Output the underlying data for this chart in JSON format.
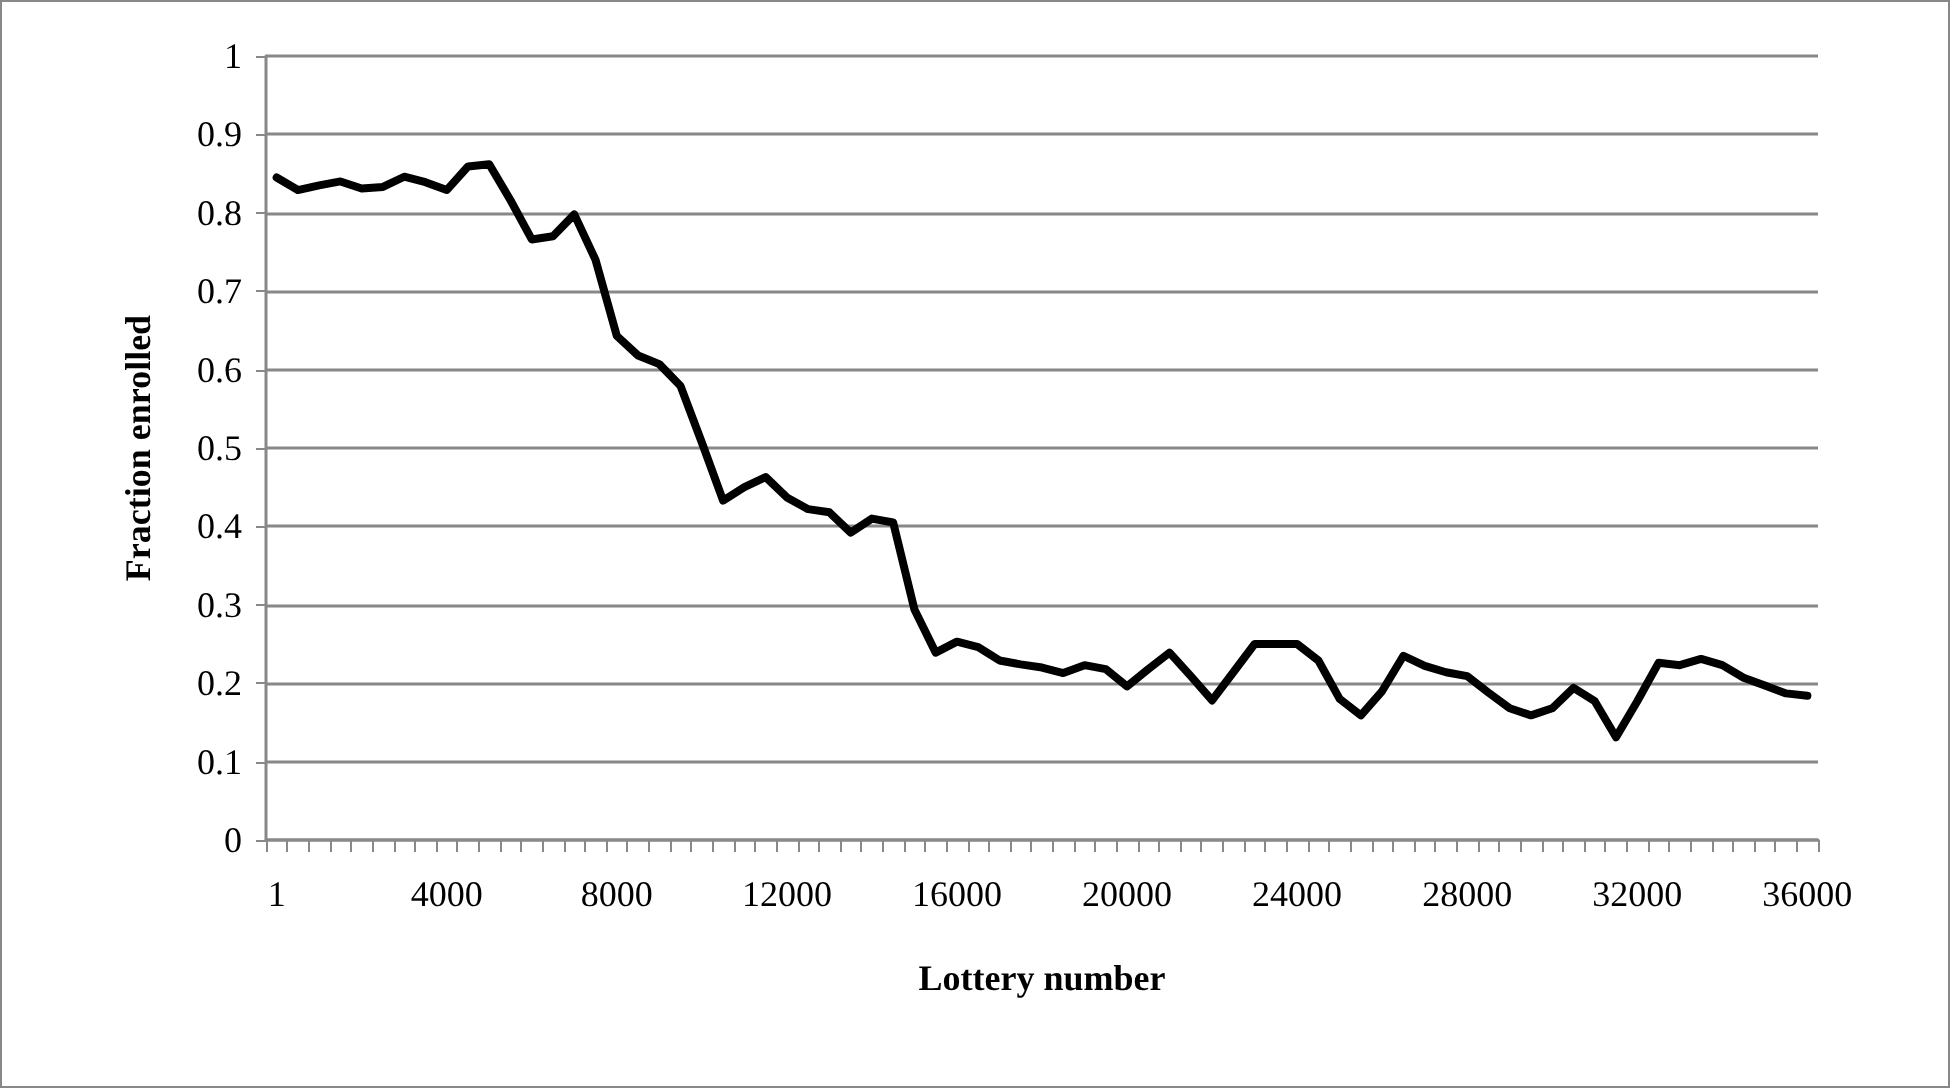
{
  "chart_data": {
    "type": "line",
    "xlabel": "Lottery number",
    "ylabel": "Fraction enrolled",
    "categories": [
      "1",
      null,
      null,
      null,
      null,
      null,
      null,
      null,
      "4000",
      null,
      null,
      null,
      null,
      null,
      null,
      null,
      "8000",
      null,
      null,
      null,
      null,
      null,
      null,
      null,
      "12000",
      null,
      null,
      null,
      null,
      null,
      null,
      null,
      "16000",
      null,
      null,
      null,
      null,
      null,
      null,
      null,
      "20000",
      null,
      null,
      null,
      null,
      null,
      null,
      null,
      "24000",
      null,
      null,
      null,
      null,
      null,
      null,
      null,
      "28000",
      null,
      null,
      null,
      null,
      null,
      null,
      null,
      "32000",
      null,
      null,
      null,
      null,
      null,
      null,
      null,
      "36000"
    ],
    "series": [
      {
        "color": "#000000",
        "values": [
          0.845,
          0.829,
          0.835,
          0.84,
          0.831,
          0.833,
          0.846,
          0.839,
          0.829,
          0.859,
          0.862,
          0.816,
          0.766,
          0.77,
          0.798,
          0.74,
          0.643,
          0.618,
          0.607,
          0.579,
          0.507,
          0.433,
          0.45,
          0.463,
          0.437,
          0.422,
          0.418,
          0.392,
          0.41,
          0.405,
          0.294,
          0.239,
          0.253,
          0.246,
          0.229,
          0.224,
          0.22,
          0.213,
          0.223,
          0.218,
          0.196,
          0.218,
          0.239,
          0.209,
          0.178,
          0.214,
          0.25,
          0.25,
          0.25,
          0.229,
          0.18,
          0.159,
          0.19,
          0.235,
          0.222,
          0.214,
          0.209,
          0.188,
          0.168,
          0.159,
          0.168,
          0.194,
          0.177,
          0.131,
          0.177,
          0.226,
          0.223,
          0.231,
          0.223,
          0.207,
          0.197,
          0.187,
          0.184
        ]
      }
    ],
    "ylim": [
      0,
      1
    ],
    "yticks": [
      0,
      0.1,
      0.2,
      0.3,
      0.4,
      0.5,
      0.6,
      0.7,
      0.8,
      0.9,
      1
    ],
    "grid": "y",
    "marker": "none",
    "line_style": "solid"
  }
}
